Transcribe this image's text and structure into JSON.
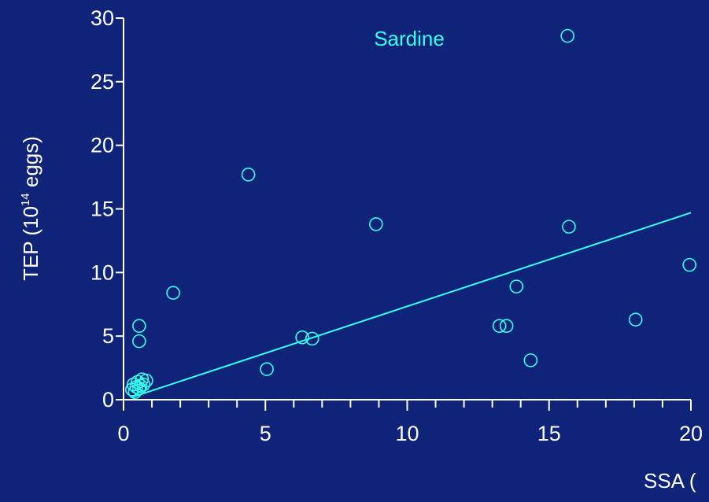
{
  "chart_data": {
    "type": "scatter",
    "title": "",
    "annotation": "Sardine",
    "xlabel": "SSA (",
    "ylabel_main": "TEP (10",
    "ylabel_sup": "14",
    "ylabel_tail": " eggs)",
    "xlim": [
      0,
      20
    ],
    "ylim": [
      0,
      30
    ],
    "x_ticks": [
      0,
      5,
      10,
      15,
      20
    ],
    "y_ticks": [
      0,
      5,
      10,
      15,
      20,
      25,
      30
    ],
    "grid": false,
    "colors": {
      "background": "#0f2479",
      "marker": "#33ffee",
      "axis": "#ffffff",
      "text": "#ffffff",
      "annotation": "#33ffee"
    },
    "series": [
      {
        "points": [
          {
            "x": 0.3,
            "y": 0.8
          },
          {
            "x": 0.35,
            "y": 1.2
          },
          {
            "x": 0.4,
            "y": 0.6
          },
          {
            "x": 0.45,
            "y": 1.0
          },
          {
            "x": 0.5,
            "y": 1.4
          },
          {
            "x": 0.55,
            "y": 0.9
          },
          {
            "x": 0.6,
            "y": 1.1
          },
          {
            "x": 0.65,
            "y": 1.6
          },
          {
            "x": 0.7,
            "y": 1.2
          },
          {
            "x": 0.8,
            "y": 1.5
          },
          {
            "x": 0.55,
            "y": 5.8
          },
          {
            "x": 0.55,
            "y": 4.6
          },
          {
            "x": 1.75,
            "y": 8.4
          },
          {
            "x": 4.4,
            "y": 17.7
          },
          {
            "x": 5.05,
            "y": 2.4
          },
          {
            "x": 6.3,
            "y": 4.9
          },
          {
            "x": 6.65,
            "y": 4.8
          },
          {
            "x": 8.9,
            "y": 13.8
          },
          {
            "x": 13.25,
            "y": 5.8
          },
          {
            "x": 13.5,
            "y": 5.8
          },
          {
            "x": 13.85,
            "y": 8.9
          },
          {
            "x": 14.35,
            "y": 3.1
          },
          {
            "x": 15.65,
            "y": 28.6
          },
          {
            "x": 15.7,
            "y": 13.6
          },
          {
            "x": 18.05,
            "y": 6.3
          },
          {
            "x": 19.95,
            "y": 10.6
          }
        ]
      }
    ],
    "fit_line": {
      "x": [
        0.3,
        20
      ],
      "y": [
        0.2,
        14.7
      ]
    }
  }
}
